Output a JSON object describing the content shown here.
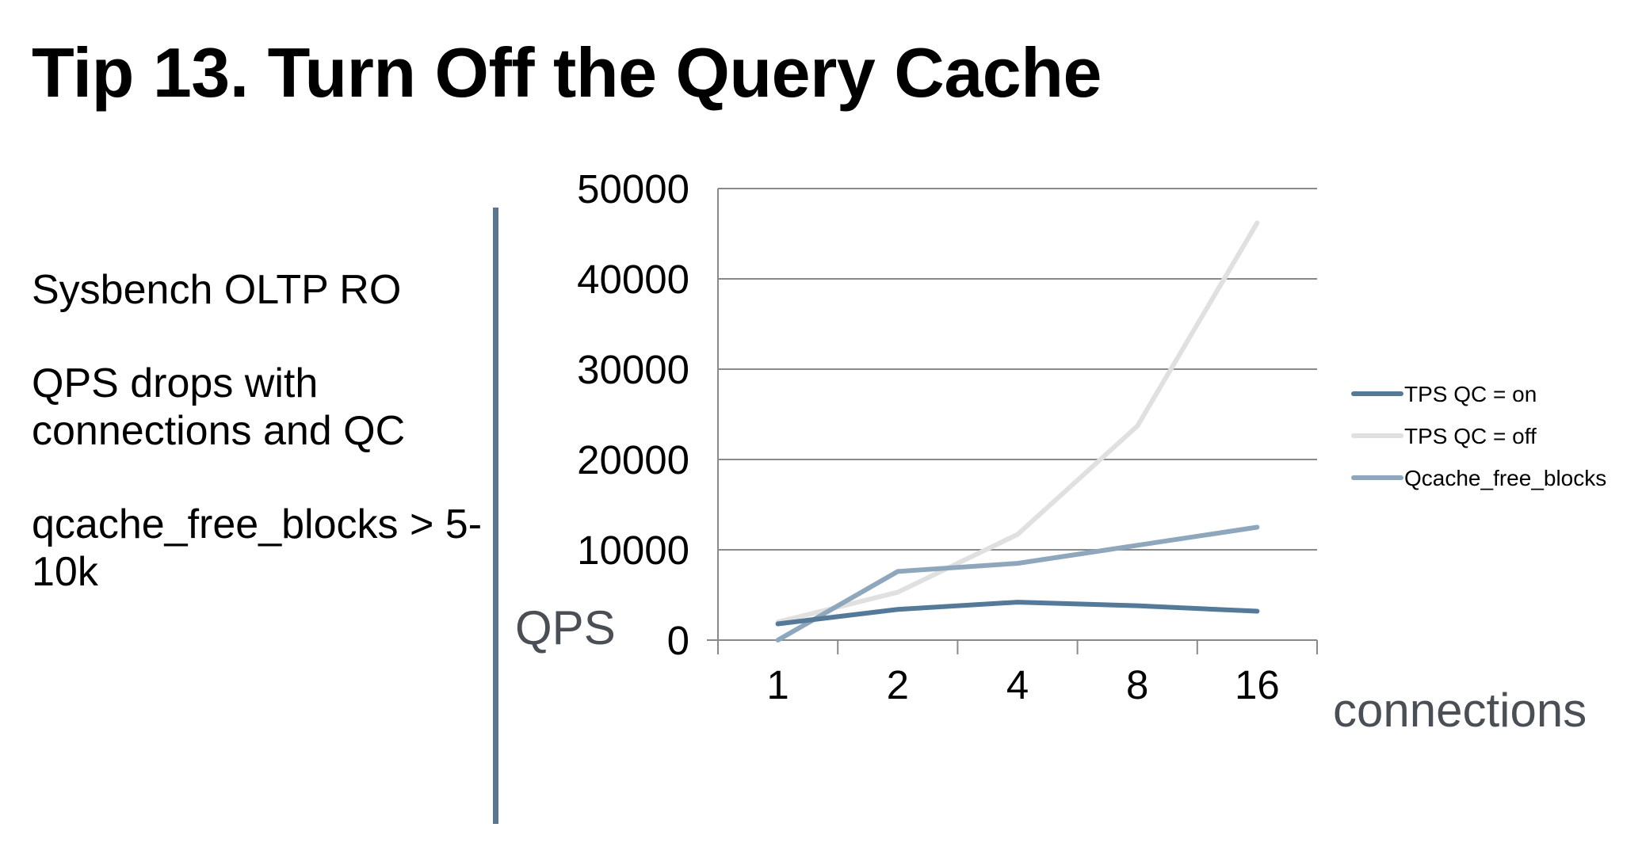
{
  "slide": {
    "title": "Tip 13. Turn Off the Query Cache",
    "bullets": [
      "Sysbench OLTP RO",
      "QPS drops with connections and QC",
      "qcache_free_blocks > 5-10k"
    ]
  },
  "chart_data": {
    "type": "line",
    "title": "",
    "xlabel": "connections",
    "ylabel": "QPS",
    "categories": [
      "1",
      "2",
      "4",
      "8",
      "16"
    ],
    "ylim": [
      0,
      50000
    ],
    "yticks": [
      0,
      10000,
      20000,
      30000,
      40000,
      50000
    ],
    "grid": true,
    "legend": "right",
    "series": [
      {
        "name": "TPS QC = on",
        "color": "#557a99",
        "values": [
          1800,
          3400,
          4200,
          3800,
          3200
        ]
      },
      {
        "name": "TPS QC = off",
        "color": "#e0e0e0",
        "values": [
          2000,
          5300,
          11700,
          23700,
          46200
        ]
      },
      {
        "name": "Qcache_free_blocks",
        "color": "#8ea7bd",
        "values": [
          0,
          7600,
          8500,
          10500,
          12500
        ]
      }
    ]
  }
}
